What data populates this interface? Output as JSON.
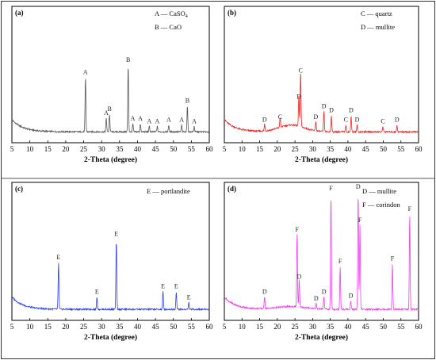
{
  "chart_data": [
    {
      "type": "line",
      "panel_label": "(a)",
      "xlabel": "2-Theta (degree)",
      "xlim": [
        5,
        60
      ],
      "x_ticks": [
        5,
        10,
        15,
        20,
        25,
        30,
        35,
        40,
        45,
        50,
        55,
        60
      ],
      "color": "#555555",
      "legend": [
        {
          "key": "A",
          "text": "A — CaSO",
          "sub": "4"
        },
        {
          "key": "B",
          "text": "B — CaO",
          "sub": ""
        }
      ],
      "peaks": [
        {
          "x": 25.5,
          "h": 0.4,
          "label": "A"
        },
        {
          "x": 31.3,
          "h": 0.1,
          "label": "A"
        },
        {
          "x": 32.2,
          "h": 0.13,
          "label": "B"
        },
        {
          "x": 37.4,
          "h": 0.49,
          "label": "B"
        },
        {
          "x": 38.7,
          "h": 0.06,
          "label": "A"
        },
        {
          "x": 40.8,
          "h": 0.06,
          "label": "A"
        },
        {
          "x": 43.3,
          "h": 0.04,
          "label": "A"
        },
        {
          "x": 45.5,
          "h": 0.04,
          "label": "A"
        },
        {
          "x": 48.7,
          "h": 0.05,
          "label": "A"
        },
        {
          "x": 52.3,
          "h": 0.05,
          "label": "A"
        },
        {
          "x": 53.9,
          "h": 0.19,
          "label": "B"
        },
        {
          "x": 55.8,
          "h": 0.04,
          "label": "A"
        }
      ]
    },
    {
      "type": "line",
      "panel_label": "(b)",
      "xlabel": "2-Theta (degree)",
      "xlim": [
        5,
        60
      ],
      "x_ticks": [
        5,
        10,
        15,
        20,
        25,
        30,
        35,
        40,
        45,
        50,
        55,
        60
      ],
      "color": "#ee2222",
      "legend": [
        {
          "key": "C",
          "text": "C — quartz",
          "sub": ""
        },
        {
          "key": "D",
          "text": "D — mullite",
          "sub": ""
        }
      ],
      "peaks": [
        {
          "x": 16.4,
          "h": 0.05,
          "label": "D"
        },
        {
          "x": 20.8,
          "h": 0.07,
          "label": "C"
        },
        {
          "x": 26.1,
          "h": 0.22,
          "label": "D"
        },
        {
          "x": 26.6,
          "h": 0.41,
          "label": "C"
        },
        {
          "x": 30.9,
          "h": 0.07,
          "label": "D"
        },
        {
          "x": 33.2,
          "h": 0.15,
          "label": "D"
        },
        {
          "x": 35.3,
          "h": 0.12,
          "label": "D"
        },
        {
          "x": 39.4,
          "h": 0.05,
          "label": "C"
        },
        {
          "x": 40.9,
          "h": 0.12,
          "label": "D"
        },
        {
          "x": 42.6,
          "h": 0.05,
          "label": "D"
        },
        {
          "x": 49.9,
          "h": 0.04,
          "label": "C"
        },
        {
          "x": 53.9,
          "h": 0.05,
          "label": "D"
        }
      ]
    },
    {
      "type": "line",
      "panel_label": "(c)",
      "xlabel": "2-Theta (degree)",
      "xlim": [
        5,
        60
      ],
      "x_ticks": [
        5,
        10,
        15,
        20,
        25,
        30,
        35,
        40,
        45,
        50,
        55,
        60
      ],
      "color": "#2a3df0",
      "legend": [
        {
          "key": "E",
          "text": "E — portlandite",
          "sub": ""
        }
      ],
      "peaks": [
        {
          "x": 18.0,
          "h": 0.34,
          "label": "E"
        },
        {
          "x": 28.7,
          "h": 0.09,
          "label": "E"
        },
        {
          "x": 34.1,
          "h": 0.51,
          "label": "E"
        },
        {
          "x": 47.1,
          "h": 0.13,
          "label": "E"
        },
        {
          "x": 50.8,
          "h": 0.13,
          "label": "E"
        },
        {
          "x": 54.3,
          "h": 0.05,
          "label": "E"
        }
      ]
    },
    {
      "type": "line",
      "panel_label": "(d)",
      "xlabel": "2-Theta (degree)",
      "xlim": [
        5,
        60
      ],
      "x_ticks": [
        5,
        10,
        15,
        20,
        25,
        30,
        35,
        40,
        45,
        50,
        55,
        60
      ],
      "color": "#ee3dee",
      "legend": [
        {
          "key": "D",
          "text": "D — mullite",
          "sub": ""
        },
        {
          "key": "F",
          "text": "F — corindon",
          "sub": ""
        }
      ],
      "peaks": [
        {
          "x": 16.4,
          "h": 0.09,
          "label": "D"
        },
        {
          "x": 25.6,
          "h": 0.54,
          "label": "F"
        },
        {
          "x": 26.2,
          "h": 0.2,
          "label": "D"
        },
        {
          "x": 31.0,
          "h": 0.04,
          "label": "D"
        },
        {
          "x": 33.2,
          "h": 0.09,
          "label": "D"
        },
        {
          "x": 35.2,
          "h": 0.84,
          "label": "F"
        },
        {
          "x": 37.8,
          "h": 0.31,
          "label": "F"
        },
        {
          "x": 40.8,
          "h": 0.06,
          "label": "D"
        },
        {
          "x": 42.9,
          "h": 0.85,
          "label": "D"
        },
        {
          "x": 43.4,
          "h": 0.61,
          "label": "F"
        },
        {
          "x": 52.6,
          "h": 0.33,
          "label": "F"
        },
        {
          "x": 57.5,
          "h": 0.69,
          "label": "F"
        }
      ]
    }
  ]
}
